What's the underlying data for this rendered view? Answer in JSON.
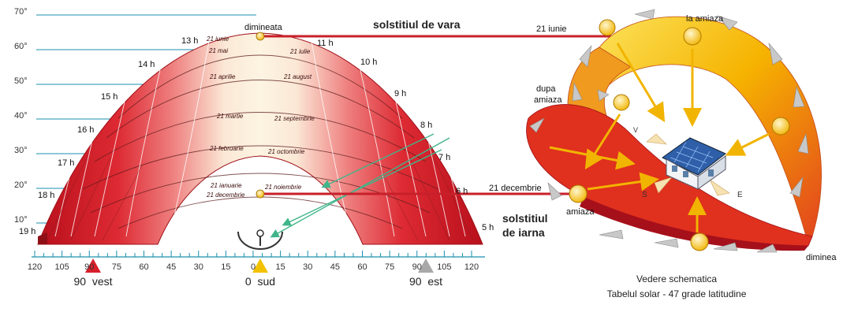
{
  "altitude_labels": [
    "70°",
    "60°",
    "50°",
    "40°",
    "30°",
    "20°",
    "10°"
  ],
  "hour_labels_left": [
    "13 h",
    "14 h",
    "15 h",
    "16 h",
    "17 h",
    "18 h",
    "19 h"
  ],
  "hour_labels_right": [
    "11 h",
    "10 h",
    "9 h",
    "8 h",
    "7 h",
    "6 h",
    "5 h"
  ],
  "date_labels_left": [
    "21 iunie",
    "21 mai",
    "21 aprilie",
    "21 martie",
    "21 februarie",
    "21 ianuarie",
    "21 decembrie"
  ],
  "date_labels_right": [
    "21 iulie",
    "21 august",
    "21 septembrie",
    "21 octombrie",
    "21 noiembrie"
  ],
  "azimuth_ticks": [
    "120",
    "105",
    "90",
    "75",
    "60",
    "45",
    "30",
    "15",
    "0",
    "15",
    "30",
    "45",
    "60",
    "75",
    "90",
    "105",
    "120"
  ],
  "direction_markers": {
    "west": "90  vest",
    "south": "0  sud",
    "east": "90  est",
    "colors": {
      "west": "#d8202a",
      "south": "#f2c200",
      "east": "#a8a8a8"
    }
  },
  "center": {
    "dimineata": "dimineata",
    "solstice_summer": "solstitiul de  vara",
    "solstice_winter_line1": "solstitiul",
    "solstice_winter_line2": "de iarna",
    "date_june": "21 iunie",
    "date_december": "21 decembrie"
  },
  "schematic": {
    "la_amiaza": "la amiaza",
    "dupa_amiaza_1": "dupa",
    "dupa_amiaza_2": "amiaza",
    "amiaza": "amiaza",
    "diminea": "diminea",
    "compass_v": "V",
    "compass_s": "S",
    "compass_e": "E",
    "caption_1": "Vedere schematica",
    "caption_2": "Tabelul solar - 47 grade latitudine"
  },
  "colors": {
    "arc_red": "#d8202a",
    "arc_light": "#fbf1dc",
    "connector": "#c8202a",
    "ring_yellow": "#f5c400",
    "blue_lines": "#1a8fb0"
  }
}
